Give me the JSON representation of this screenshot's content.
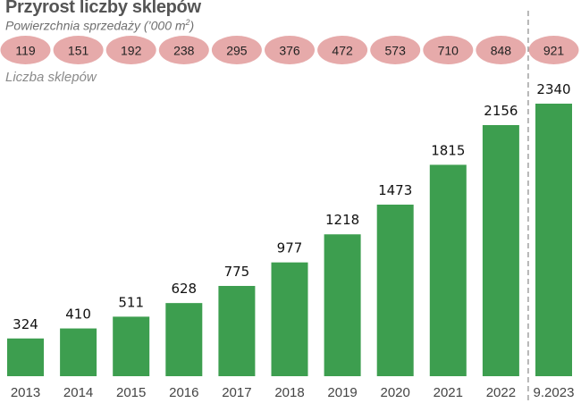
{
  "chart_data": {
    "type": "bar",
    "title": "Przyrost liczby sklepów",
    "subtitle_prefix": "Powierzchnia sprzedaży (’000 m",
    "subtitle_sup": "2",
    "subtitle_suffix": ")",
    "series_label": "Liczba sklepów",
    "categories": [
      "2013",
      "2014",
      "2015",
      "2016",
      "2017",
      "2018",
      "2019",
      "2020",
      "2021",
      "2022",
      "9.2023"
    ],
    "values": [
      324,
      410,
      511,
      628,
      775,
      977,
      1218,
      1473,
      1815,
      2156,
      2340
    ],
    "sales_area": [
      119,
      151,
      192,
      238,
      295,
      376,
      472,
      573,
      710,
      848,
      921
    ],
    "ylim": [
      0,
      2340
    ],
    "grid": false,
    "colors": {
      "bar": "#3d9e4f",
      "ellipse": "#e6aaaa",
      "divider": "#888888",
      "label": "#111111",
      "tick": "#444444"
    }
  }
}
